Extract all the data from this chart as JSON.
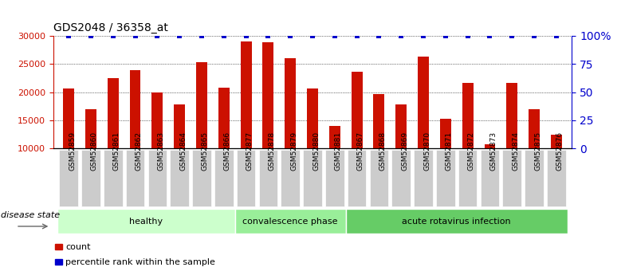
{
  "title": "GDS2048 / 36358_at",
  "samples": [
    "GSM52859",
    "GSM52860",
    "GSM52861",
    "GSM52862",
    "GSM52863",
    "GSM52864",
    "GSM52865",
    "GSM52866",
    "GSM52877",
    "GSM52878",
    "GSM52879",
    "GSM52880",
    "GSM52881",
    "GSM52867",
    "GSM52868",
    "GSM52869",
    "GSM52870",
    "GSM52871",
    "GSM52872",
    "GSM52873",
    "GSM52874",
    "GSM52875",
    "GSM52876"
  ],
  "counts": [
    20700,
    17000,
    22500,
    23900,
    20000,
    17800,
    25300,
    20800,
    29000,
    28800,
    26000,
    20700,
    14000,
    23600,
    19700,
    17800,
    26300,
    15300,
    21700,
    10700,
    21700,
    17000,
    12500
  ],
  "percentile_ranks": [
    100,
    100,
    100,
    100,
    100,
    100,
    100,
    100,
    100,
    100,
    100,
    100,
    100,
    100,
    100,
    100,
    100,
    100,
    100,
    100,
    100,
    100,
    100
  ],
  "groups": [
    {
      "label": "healthy",
      "start": 0,
      "end": 8,
      "color": "#ccffcc"
    },
    {
      "label": "convalescence phase",
      "start": 8,
      "end": 13,
      "color": "#99ee99"
    },
    {
      "label": "acute rotavirus infection",
      "start": 13,
      "end": 23,
      "color": "#66cc66"
    }
  ],
  "bar_color": "#cc1100",
  "dot_color": "#0000cc",
  "ylim_left": [
    10000,
    30000
  ],
  "ylim_right": [
    0,
    100
  ],
  "yticks_left": [
    10000,
    15000,
    20000,
    25000,
    30000
  ],
  "yticks_right": [
    0,
    25,
    50,
    75,
    100
  ],
  "ylabel_left_color": "#cc1100",
  "ylabel_right_color": "#0000cc",
  "disease_state_label": "disease state",
  "legend_count_label": "count",
  "legend_pct_label": "percentile rank within the sample",
  "bg_color": "#ffffff",
  "tick_label_bg": "#cccccc",
  "bar_width": 0.5,
  "dot_markersize": 4,
  "title_fontsize": 10,
  "tick_fontsize": 6.5,
  "group_fontsize": 8,
  "legend_fontsize": 8
}
